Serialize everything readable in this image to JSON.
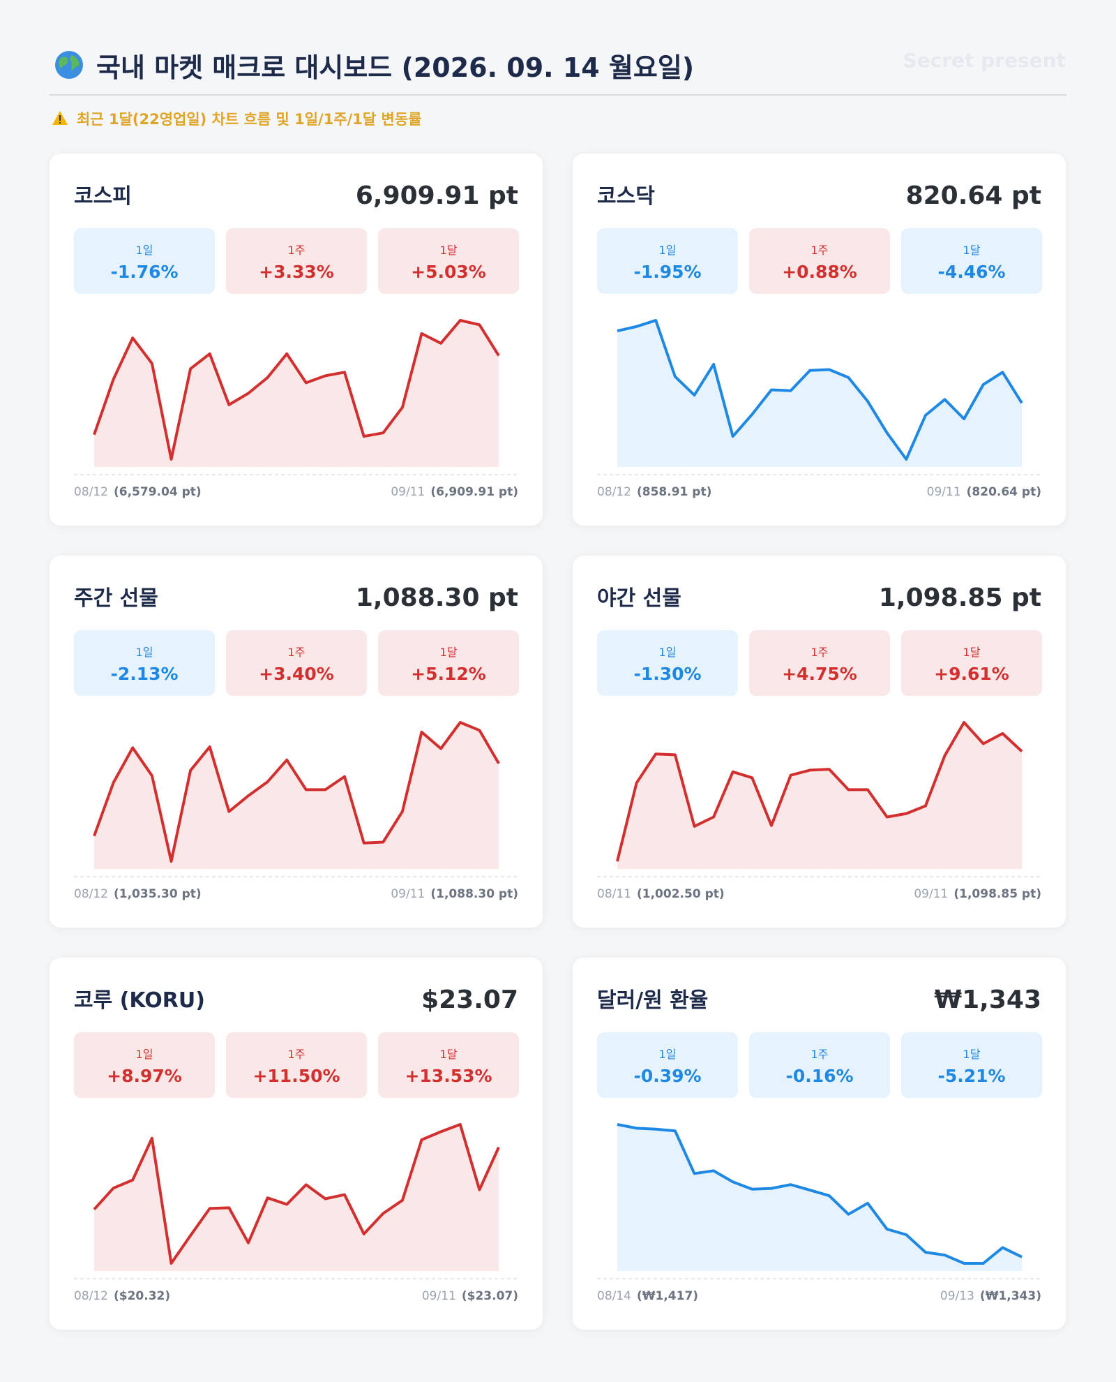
{
  "header": {
    "title": "국내 마켓 매크로 대시보드 (2026. 09. 14 월요일)",
    "watermark": "Secret present",
    "subtitle": "최근 1달(22영업일) 차트 흐름 및 1일/1주/1달 변동률"
  },
  "chart_data": [
    {
      "type": "line",
      "title": "코스피",
      "value_text": "6,909.91 pt",
      "changes": [
        {
          "label": "1일",
          "value": "-1.76%",
          "color": "#1e88e5"
        },
        {
          "label": "1주",
          "value": "+3.33%",
          "color": "#d32f2f"
        },
        {
          "label": "1달",
          "value": "+5.03%",
          "color": "#d32f2f"
        }
      ],
      "categories": [
        "08/12",
        null,
        null,
        null,
        null,
        null,
        null,
        null,
        null,
        null,
        null,
        null,
        null,
        null,
        null,
        null,
        null,
        null,
        null,
        null,
        null,
        "09/11"
      ],
      "series": [
        {
          "color": "#d32f2f",
          "values": [
            6579.04,
            6810.6,
            6983.4,
            6876.8,
            6476.1,
            6854.7,
            6917.2,
            6704.0,
            6751.8,
            6818.0,
            6917.2,
            6796.0,
            6825.3,
            6840.0,
            6571.7,
            6586.4,
            6693.0,
            7001.8,
            6961.3,
            7056.9,
            7038.5,
            6909.91
          ],
          "value_labels": [
            "(6,579.04 pt)",
            null,
            null,
            null,
            null,
            null,
            null,
            null,
            null,
            null,
            null,
            null,
            null,
            null,
            null,
            null,
            null,
            null,
            null,
            null,
            null,
            "(6,909.91 pt)"
          ]
        }
      ]
    },
    {
      "type": "line",
      "title": "코스닥",
      "value_text": "820.64 pt",
      "changes": [
        {
          "label": "1일",
          "value": "-1.95%",
          "color": "#1e88e5"
        },
        {
          "label": "1주",
          "value": "+0.88%",
          "color": "#d32f2f"
        },
        {
          "label": "1달",
          "value": "-4.46%",
          "color": "#1e88e5"
        }
      ],
      "categories": [
        "08/12",
        null,
        null,
        null,
        null,
        null,
        null,
        null,
        null,
        null,
        null,
        null,
        null,
        null,
        null,
        null,
        null,
        null,
        null,
        null,
        null,
        "09/11"
      ],
      "series": [
        {
          "color": "#1e88e5",
          "values": [
            858.91,
            861.24,
            864.51,
            834.64,
            824.84,
            841.18,
            802.91,
            814.58,
            827.64,
            827.18,
            837.91,
            838.38,
            834.18,
            821.58,
            804.77,
            790.77,
            814.11,
            822.51,
            812.24,
            830.44,
            836.98,
            820.64
          ],
          "value_labels": [
            "(858.91 pt)",
            null,
            null,
            null,
            null,
            null,
            null,
            null,
            null,
            null,
            null,
            null,
            null,
            null,
            null,
            null,
            null,
            null,
            null,
            null,
            null,
            "(820.64 pt)"
          ]
        }
      ]
    },
    {
      "type": "line",
      "title": "주간 선물",
      "value_text": "1,088.30 pt",
      "changes": [
        {
          "label": "1일",
          "value": "-2.13%",
          "color": "#1e88e5"
        },
        {
          "label": "1주",
          "value": "+3.40%",
          "color": "#d32f2f"
        },
        {
          "label": "1달",
          "value": "+5.12%",
          "color": "#d32f2f"
        }
      ],
      "categories": [
        "08/12",
        null,
        null,
        null,
        null,
        null,
        null,
        null,
        null,
        null,
        null,
        null,
        null,
        null,
        null,
        null,
        null,
        null,
        null,
        null,
        null,
        "09/11"
      ],
      "series": [
        {
          "color": "#d32f2f",
          "values": [
            1035.3,
            1074.25,
            1099.8,
            1079.36,
            1016.78,
            1083.19,
            1100.43,
            1053.18,
            1064.67,
            1074.89,
            1090.85,
            1069.14,
            1069.14,
            1078.72,
            1030.19,
            1030.83,
            1053.18,
            1111.29,
            1099.16,
            1118.31,
            1112.57,
            1088.3
          ],
          "value_labels": [
            "(1,035.30 pt)",
            null,
            null,
            null,
            null,
            null,
            null,
            null,
            null,
            null,
            null,
            null,
            null,
            null,
            null,
            null,
            null,
            null,
            null,
            null,
            null,
            "(1,088.30 pt)"
          ]
        }
      ]
    },
    {
      "type": "line",
      "title": "야간 선물",
      "value_text": "1,098.85 pt",
      "changes": [
        {
          "label": "1일",
          "value": "-1.30%",
          "color": "#1e88e5"
        },
        {
          "label": "1주",
          "value": "+4.75%",
          "color": "#d32f2f"
        },
        {
          "label": "1달",
          "value": "+9.61%",
          "color": "#d32f2f"
        }
      ],
      "categories": [
        "08/11",
        null,
        null,
        null,
        null,
        null,
        null,
        null,
        null,
        null,
        null,
        null,
        null,
        null,
        null,
        null,
        null,
        null,
        null,
        null,
        null,
        "09/11"
      ],
      "series": [
        {
          "color": "#d32f2f",
          "values": [
            1002.5,
            1071.21,
            1096.61,
            1095.86,
            1033.12,
            1041.34,
            1080.92,
            1075.7,
            1033.87,
            1077.94,
            1082.42,
            1083.17,
            1065.24,
            1065.24,
            1041.34,
            1044.33,
            1051.05,
            1095.12,
            1124.24,
            1105.57,
            1114.54,
            1098.85
          ],
          "value_labels": [
            "(1,002.50 pt)",
            null,
            null,
            null,
            null,
            null,
            null,
            null,
            null,
            null,
            null,
            null,
            null,
            null,
            null,
            null,
            null,
            null,
            null,
            null,
            null,
            "(1,098.85 pt)"
          ]
        }
      ]
    },
    {
      "type": "line",
      "title": "코루 (KORU)",
      "value_text": "$23.07",
      "changes": [
        {
          "label": "1일",
          "value": "+8.97%",
          "color": "#d32f2f"
        },
        {
          "label": "1주",
          "value": "+11.50%",
          "color": "#d32f2f"
        },
        {
          "label": "1달",
          "value": "+13.53%",
          "color": "#d32f2f"
        }
      ],
      "categories": [
        "08/12",
        null,
        null,
        null,
        null,
        null,
        null,
        null,
        null,
        null,
        null,
        null,
        null,
        null,
        null,
        null,
        null,
        null,
        null,
        null,
        null,
        "09/11"
      ],
      "series": [
        {
          "color": "#d32f2f",
          "values": [
            20.32,
            21.26,
            21.62,
            23.47,
            17.93,
            19.16,
            20.36,
            20.39,
            18.84,
            20.83,
            20.54,
            21.41,
            20.79,
            20.97,
            19.23,
            20.14,
            20.72,
            23.4,
            23.76,
            24.08,
            21.19,
            23.07
          ],
          "value_labels": [
            "($20.32)",
            null,
            null,
            null,
            null,
            null,
            null,
            null,
            null,
            null,
            null,
            null,
            null,
            null,
            null,
            null,
            null,
            null,
            null,
            null,
            null,
            "($23.07)"
          ]
        }
      ]
    },
    {
      "type": "line",
      "title": "달러/원 환율",
      "value_text": "₩1,343",
      "changes": [
        {
          "label": "1일",
          "value": "-0.39%",
          "color": "#1e88e5"
        },
        {
          "label": "1주",
          "value": "-0.16%",
          "color": "#1e88e5"
        },
        {
          "label": "1달",
          "value": "-5.21%",
          "color": "#1e88e5"
        }
      ],
      "categories": [
        "08/14",
        null,
        null,
        null,
        null,
        null,
        null,
        null,
        null,
        null,
        null,
        null,
        null,
        null,
        null,
        null,
        null,
        null,
        null,
        null,
        null,
        "09/13"
      ],
      "series": [
        {
          "color": "#1e88e5",
          "values": [
            1417,
            1414.9,
            1414.4,
            1413.4,
            1389.6,
            1391.1,
            1384.9,
            1380.8,
            1381.3,
            1383.4,
            1380.3,
            1377.2,
            1366.8,
            1373.0,
            1358.5,
            1355.4,
            1345.6,
            1344.0,
            1339.4,
            1339.4,
            1348.2,
            1343
          ],
          "value_labels": [
            "(₩1,417)",
            null,
            null,
            null,
            null,
            null,
            null,
            null,
            null,
            null,
            null,
            null,
            null,
            null,
            null,
            null,
            null,
            null,
            null,
            null,
            null,
            "(₩1,343)"
          ]
        }
      ]
    }
  ]
}
